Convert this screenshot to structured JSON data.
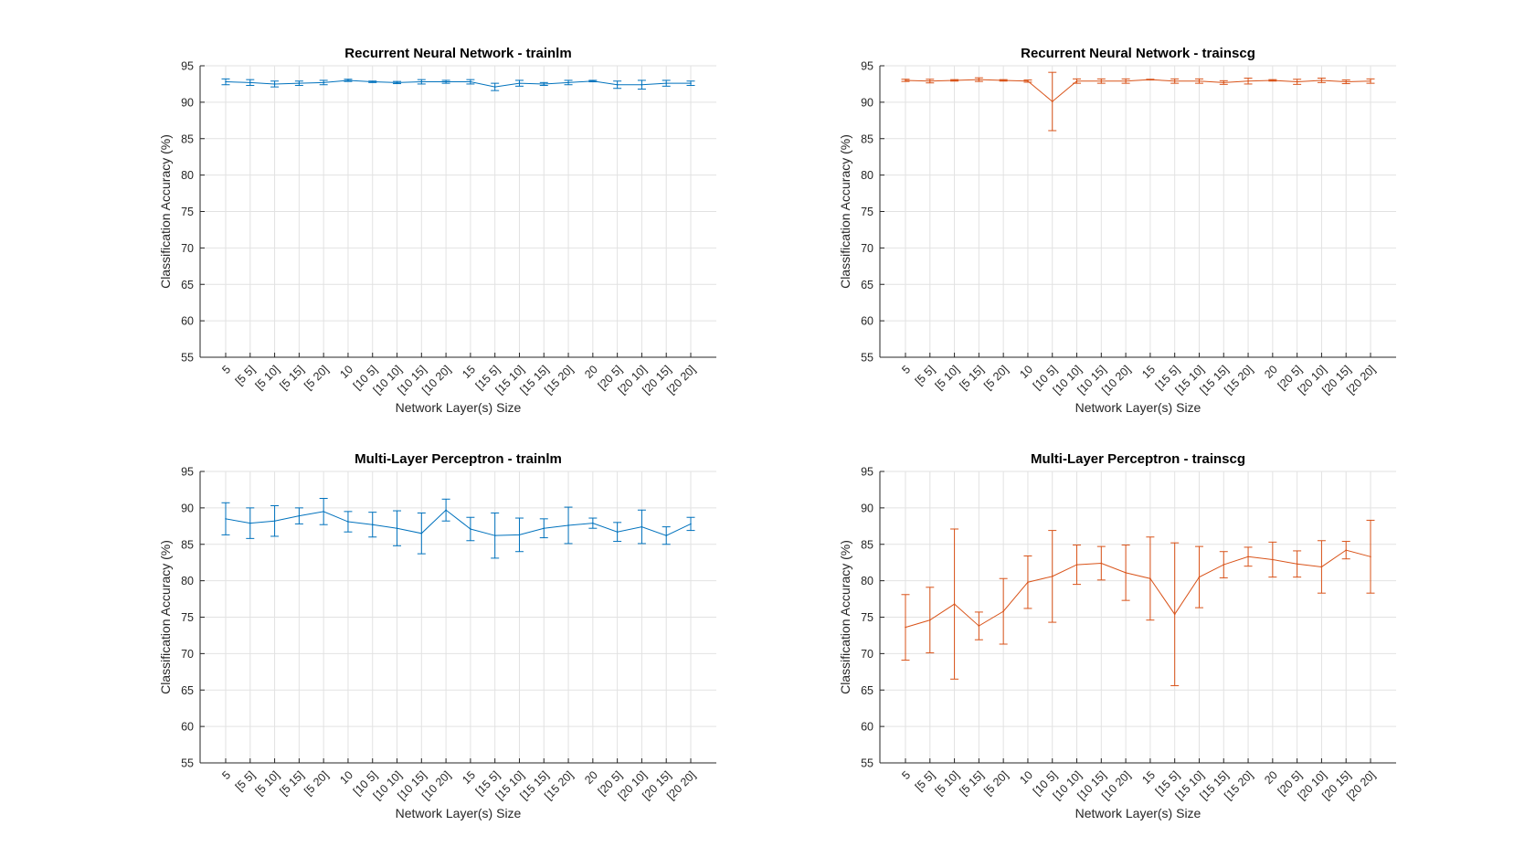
{
  "figure": {
    "background": "#ffffff"
  },
  "chart_data": [
    {
      "type": "line",
      "title": "Recurrent Neural Network - trainlm",
      "xlabel": "Network Layer(s) Size",
      "ylabel": "Classification Accuracy (%)",
      "ylim": [
        55,
        95
      ],
      "yticks": [
        55,
        60,
        65,
        70,
        75,
        80,
        85,
        90,
        95
      ],
      "grid": true,
      "error_bars": true,
      "color": "#0072BD",
      "categories": [
        "5",
        "[5 5]",
        "[5 10]",
        "[5 15]",
        "[5 20]",
        "10",
        "[10 5]",
        "[10 10]",
        "[10 15]",
        "[10 20]",
        "15",
        "[15 5]",
        "[15 10]",
        "[15 15]",
        "[15 20]",
        "20",
        "[20 5]",
        "[20 10]",
        "[20 15]",
        "[20 20]"
      ],
      "values": [
        92.8,
        92.7,
        92.5,
        92.6,
        92.7,
        93.0,
        92.8,
        92.7,
        92.8,
        92.8,
        92.8,
        92.1,
        92.6,
        92.5,
        92.7,
        92.9,
        92.4,
        92.4,
        92.6,
        92.6
      ],
      "errors": [
        0.4,
        0.4,
        0.4,
        0.3,
        0.3,
        0.15,
        0.1,
        0.15,
        0.3,
        0.2,
        0.3,
        0.5,
        0.4,
        0.2,
        0.3,
        0.1,
        0.5,
        0.6,
        0.4,
        0.3
      ]
    },
    {
      "type": "line",
      "title": "Recurrent Neural Network - trainscg",
      "xlabel": "Network Layer(s) Size",
      "ylabel": "Classification Accuracy (%)",
      "ylim": [
        55,
        95
      ],
      "yticks": [
        55,
        60,
        65,
        70,
        75,
        80,
        85,
        90,
        95
      ],
      "grid": true,
      "error_bars": true,
      "color": "#D95319",
      "categories": [
        "5",
        "[5 5]",
        "[5 10]",
        "[5 15]",
        "[5 20]",
        "10",
        "[10 5]",
        "[10 10]",
        "[10 15]",
        "[10 20]",
        "15",
        "[15 5]",
        "[15 10]",
        "[15 15]",
        "[15 20]",
        "20",
        "[20 5]",
        "[20 10]",
        "[20 15]",
        "[20 20]"
      ],
      "values": [
        93.0,
        92.9,
        93.0,
        93.1,
        93.0,
        92.9,
        90.1,
        92.9,
        92.9,
        92.9,
        93.1,
        92.9,
        92.9,
        92.7,
        92.9,
        93.0,
        92.8,
        93.0,
        92.8,
        92.9
      ],
      "errors": [
        0.15,
        0.25,
        0.1,
        0.25,
        0.1,
        0.15,
        4.0,
        0.3,
        0.3,
        0.3,
        0.05,
        0.3,
        0.3,
        0.25,
        0.4,
        0.1,
        0.35,
        0.3,
        0.25,
        0.3
      ]
    },
    {
      "type": "line",
      "title": "Multi-Layer Perceptron - trainlm",
      "xlabel": "Network Layer(s) Size",
      "ylabel": "Classification Accuracy (%)",
      "ylim": [
        55,
        95
      ],
      "yticks": [
        55,
        60,
        65,
        70,
        75,
        80,
        85,
        90,
        95
      ],
      "grid": true,
      "error_bars": true,
      "color": "#0072BD",
      "categories": [
        "5",
        "[5 5]",
        "[5 10]",
        "[5 15]",
        "[5 20]",
        "10",
        "[10 5]",
        "[10 10]",
        "[10 15]",
        "[10 20]",
        "15",
        "[15 5]",
        "[15 10]",
        "[15 15]",
        "[15 20]",
        "20",
        "[20 5]",
        "[20 10]",
        "[20 15]",
        "[20 20]"
      ],
      "values": [
        88.5,
        87.9,
        88.2,
        88.9,
        89.5,
        88.1,
        87.7,
        87.2,
        86.5,
        89.7,
        87.1,
        86.2,
        86.3,
        87.2,
        87.6,
        87.9,
        86.7,
        87.4,
        86.2,
        87.8
      ],
      "errors": [
        2.2,
        2.1,
        2.1,
        1.1,
        1.8,
        1.4,
        1.7,
        2.4,
        2.8,
        1.5,
        1.6,
        3.1,
        2.3,
        1.3,
        2.5,
        0.7,
        1.3,
        2.3,
        1.2,
        0.9
      ]
    },
    {
      "type": "line",
      "title": "Multi-Layer Perceptron - trainscg",
      "xlabel": "Network Layer(s) Size",
      "ylabel": "Classification Accuracy (%)",
      "ylim": [
        55,
        95
      ],
      "yticks": [
        55,
        60,
        65,
        70,
        75,
        80,
        85,
        90,
        95
      ],
      "grid": true,
      "error_bars": true,
      "color": "#D95319",
      "categories": [
        "5",
        "[5 5]",
        "[5 10]",
        "[5 15]",
        "[5 20]",
        "10",
        "[10 5]",
        "[10 10]",
        "[10 15]",
        "[10 20]",
        "15",
        "[15 5]",
        "[15 10]",
        "[15 15]",
        "[15 20]",
        "20",
        "[20 5]",
        "[20 10]",
        "[20 15]",
        "[20 20]"
      ],
      "values": [
        73.6,
        74.6,
        76.8,
        73.8,
        75.8,
        79.8,
        80.6,
        82.2,
        82.4,
        81.1,
        80.3,
        75.4,
        80.5,
        82.2,
        83.3,
        82.9,
        82.3,
        81.9,
        84.2,
        83.3
      ],
      "errors": [
        4.5,
        4.5,
        10.3,
        1.9,
        4.5,
        3.6,
        6.3,
        2.7,
        2.3,
        3.8,
        5.7,
        9.8,
        4.2,
        1.8,
        1.3,
        2.4,
        1.8,
        3.6,
        1.2,
        5.0
      ]
    }
  ]
}
